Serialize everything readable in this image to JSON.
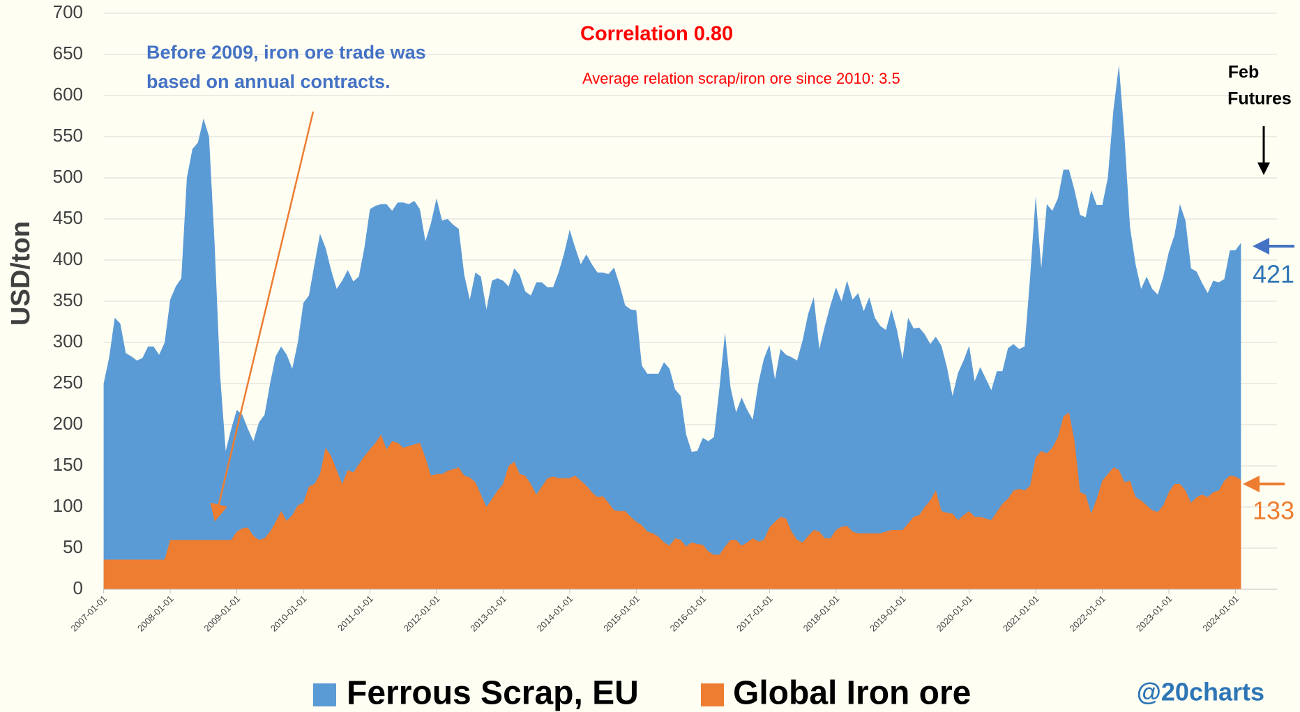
{
  "chart_data": {
    "type": "area",
    "title": "Correlation 0.80",
    "subtitle": "Average relation scrap/iron ore since 2010: 3.5",
    "annotation_lines": [
      "Before 2009, iron ore trade was",
      "based on annual contracts."
    ],
    "futures_lines": [
      "Feb",
      "Futures"
    ],
    "y_label": "USD/ton",
    "credit": "@20charts",
    "ylim": [
      0,
      700
    ],
    "yticks": [
      0,
      50,
      100,
      150,
      200,
      250,
      300,
      350,
      400,
      450,
      500,
      550,
      600,
      650,
      700
    ],
    "xticks": [
      "2007-01-01",
      "2008-01-01",
      "2009-01-01",
      "2010-01-01",
      "2011-01-01",
      "2012-01-01",
      "2013-01-01",
      "2014-01-01",
      "2015-01-01",
      "2016-01-01",
      "2017-01-01",
      "2018-01-01",
      "2019-01-01",
      "2020-01-01",
      "2021-01-01",
      "2022-01-01",
      "2023-01-01",
      "2024-01-01"
    ],
    "grid": true,
    "legend": "bottom",
    "x": [
      "2007-01-01",
      "2007-02-01",
      "2007-03-01",
      "2007-04-01",
      "2007-05-01",
      "2007-06-01",
      "2007-07-01",
      "2007-08-01",
      "2007-09-01",
      "2007-10-01",
      "2007-11-01",
      "2007-12-01",
      "2008-01-01",
      "2008-02-01",
      "2008-03-01",
      "2008-04-01",
      "2008-05-01",
      "2008-06-01",
      "2008-07-01",
      "2008-08-01",
      "2008-09-01",
      "2008-10-01",
      "2008-11-01",
      "2008-12-01",
      "2009-01-01",
      "2009-02-01",
      "2009-03-01",
      "2009-04-01",
      "2009-05-01",
      "2009-06-01",
      "2009-07-01",
      "2009-08-01",
      "2009-09-01",
      "2009-10-01",
      "2009-11-01",
      "2009-12-01",
      "2010-01-01",
      "2010-02-01",
      "2010-03-01",
      "2010-04-01",
      "2010-05-01",
      "2010-06-01",
      "2010-07-01",
      "2010-08-01",
      "2010-09-01",
      "2010-10-01",
      "2010-11-01",
      "2010-12-01",
      "2011-01-01",
      "2011-02-01",
      "2011-03-01",
      "2011-04-01",
      "2011-05-01",
      "2011-06-01",
      "2011-07-01",
      "2011-08-01",
      "2011-09-01",
      "2011-10-01",
      "2011-11-01",
      "2011-12-01",
      "2012-01-01",
      "2012-02-01",
      "2012-03-01",
      "2012-04-01",
      "2012-05-01",
      "2012-06-01",
      "2012-07-01",
      "2012-08-01",
      "2012-09-01",
      "2012-10-01",
      "2012-11-01",
      "2012-12-01",
      "2013-01-01",
      "2013-02-01",
      "2013-03-01",
      "2013-04-01",
      "2013-05-01",
      "2013-06-01",
      "2013-07-01",
      "2013-08-01",
      "2013-09-01",
      "2013-10-01",
      "2013-11-01",
      "2013-12-01",
      "2014-01-01",
      "2014-02-01",
      "2014-03-01",
      "2014-04-01",
      "2014-05-01",
      "2014-06-01",
      "2014-07-01",
      "2014-08-01",
      "2014-09-01",
      "2014-10-01",
      "2014-11-01",
      "2014-12-01",
      "2015-01-01",
      "2015-02-01",
      "2015-03-01",
      "2015-04-01",
      "2015-05-01",
      "2015-06-01",
      "2015-07-01",
      "2015-08-01",
      "2015-09-01",
      "2015-10-01",
      "2015-11-01",
      "2015-12-01",
      "2016-01-01",
      "2016-02-01",
      "2016-03-01",
      "2016-04-01",
      "2016-05-01",
      "2016-06-01",
      "2016-07-01",
      "2016-08-01",
      "2016-09-01",
      "2016-10-01",
      "2016-11-01",
      "2016-12-01",
      "2017-01-01",
      "2017-02-01",
      "2017-03-01",
      "2017-04-01",
      "2017-05-01",
      "2017-06-01",
      "2017-07-01",
      "2017-08-01",
      "2017-09-01",
      "2017-10-01",
      "2017-11-01",
      "2017-12-01",
      "2018-01-01",
      "2018-02-01",
      "2018-03-01",
      "2018-04-01",
      "2018-05-01",
      "2018-06-01",
      "2018-07-01",
      "2018-08-01",
      "2018-09-01",
      "2018-10-01",
      "2018-11-01",
      "2018-12-01",
      "2019-01-01",
      "2019-02-01",
      "2019-03-01",
      "2019-04-01",
      "2019-05-01",
      "2019-06-01",
      "2019-07-01",
      "2019-08-01",
      "2019-09-01",
      "2019-10-01",
      "2019-11-01",
      "2019-12-01",
      "2020-01-01",
      "2020-02-01",
      "2020-03-01",
      "2020-04-01",
      "2020-05-01",
      "2020-06-01",
      "2020-07-01",
      "2020-08-01",
      "2020-09-01",
      "2020-10-01",
      "2020-11-01",
      "2020-12-01",
      "2021-01-01",
      "2021-02-01",
      "2021-03-01",
      "2021-04-01",
      "2021-05-01",
      "2021-06-01",
      "2021-07-01",
      "2021-08-01",
      "2021-09-01",
      "2021-10-01",
      "2021-11-01",
      "2021-12-01",
      "2022-01-01",
      "2022-02-01",
      "2022-03-01",
      "2022-04-01",
      "2022-05-01",
      "2022-06-01",
      "2022-07-01",
      "2022-08-01",
      "2022-09-01",
      "2022-10-01",
      "2022-11-01",
      "2022-12-01",
      "2023-01-01",
      "2023-02-01",
      "2023-03-01",
      "2023-04-01",
      "2023-05-01",
      "2023-06-01",
      "2023-07-01",
      "2023-08-01",
      "2023-09-01",
      "2023-10-01",
      "2023-11-01",
      "2023-12-01",
      "2024-01-01",
      "2024-02-01"
    ],
    "series": [
      {
        "name": "Ferrous Scrap, EU",
        "color": "#5b9bd5",
        "values": [
          250,
          282,
          330,
          323,
          287,
          283,
          278,
          281,
          295,
          295,
          285,
          300,
          352,
          368,
          378,
          500,
          535,
          543,
          572,
          550,
          420,
          260,
          168,
          195,
          218,
          212,
          195,
          180,
          203,
          212,
          250,
          283,
          295,
          285,
          268,
          300,
          348,
          357,
          395,
          432,
          415,
          388,
          365,
          375,
          388,
          374,
          380,
          415,
          462,
          466,
          468,
          468,
          460,
          470,
          470,
          468,
          472,
          462,
          423,
          445,
          475,
          448,
          450,
          443,
          438,
          382,
          352,
          385,
          380,
          340,
          375,
          378,
          375,
          368,
          390,
          382,
          362,
          357,
          373,
          373,
          367,
          367,
          385,
          408,
          437,
          415,
          395,
          407,
          395,
          385,
          385,
          383,
          391,
          370,
          345,
          340,
          339,
          272,
          262,
          262,
          262,
          276,
          268,
          243,
          235,
          188,
          167,
          168,
          184,
          180,
          185,
          245,
          312,
          245,
          215,
          233,
          218,
          206,
          250,
          280,
          297,
          255,
          292,
          285,
          282,
          278,
          303,
          335,
          355,
          292,
          320,
          345,
          367,
          350,
          375,
          352,
          360,
          338,
          355,
          330,
          320,
          315,
          340,
          315,
          280,
          330,
          317,
          318,
          310,
          298,
          307,
          296,
          270,
          235,
          263,
          278,
          296,
          253,
          270,
          256,
          242,
          265,
          265,
          293,
          298,
          292,
          295,
          380,
          478,
          390,
          468,
          460,
          475,
          510,
          510,
          485,
          455,
          452,
          485,
          467,
          467,
          500,
          582,
          637,
          550,
          440,
          395,
          365,
          380,
          365,
          358,
          380,
          410,
          430,
          468,
          448,
          390,
          386,
          372,
          360,
          375,
          373,
          377,
          412,
          412,
          421
        ]
      },
      {
        "name": "Global Iron ore",
        "color": "#ed7d31",
        "values": [
          36,
          36,
          36,
          36,
          36,
          36,
          36,
          36,
          36,
          36,
          36,
          36,
          60,
          60,
          60,
          60,
          60,
          60,
          60,
          60,
          60,
          60,
          60,
          60,
          70,
          74,
          75,
          65,
          60,
          62,
          70,
          82,
          95,
          83,
          90,
          102,
          105,
          125,
          128,
          140,
          172,
          162,
          145,
          128,
          145,
          142,
          152,
          162,
          170,
          178,
          188,
          170,
          180,
          178,
          172,
          174,
          176,
          178,
          160,
          138,
          140,
          140,
          144,
          146,
          148,
          138,
          136,
          130,
          115,
          100,
          110,
          120,
          128,
          150,
          155,
          140,
          138,
          128,
          115,
          125,
          135,
          137,
          135,
          135,
          135,
          138,
          132,
          126,
          118,
          112,
          113,
          105,
          96,
          95,
          95,
          88,
          82,
          78,
          70,
          68,
          64,
          57,
          53,
          62,
          60,
          52,
          57,
          55,
          54,
          46,
          42,
          42,
          52,
          60,
          60,
          53,
          57,
          62,
          58,
          60,
          75,
          82,
          88,
          86,
          70,
          60,
          57,
          65,
          72,
          70,
          62,
          62,
          72,
          76,
          77,
          70,
          68,
          68,
          68,
          68,
          68,
          70,
          72,
          72,
          72,
          80,
          88,
          90,
          100,
          108,
          120,
          95,
          93,
          92,
          84,
          90,
          95,
          88,
          88,
          86,
          84,
          94,
          104,
          110,
          120,
          122,
          120,
          126,
          160,
          168,
          165,
          172,
          185,
          210,
          215,
          180,
          118,
          115,
          92,
          110,
          132,
          140,
          148,
          145,
          130,
          132,
          112,
          108,
          102,
          96,
          94,
          102,
          118,
          128,
          128,
          120,
          105,
          112,
          115,
          112,
          118,
          120,
          132,
          138,
          137,
          133
        ]
      }
    ]
  }
}
